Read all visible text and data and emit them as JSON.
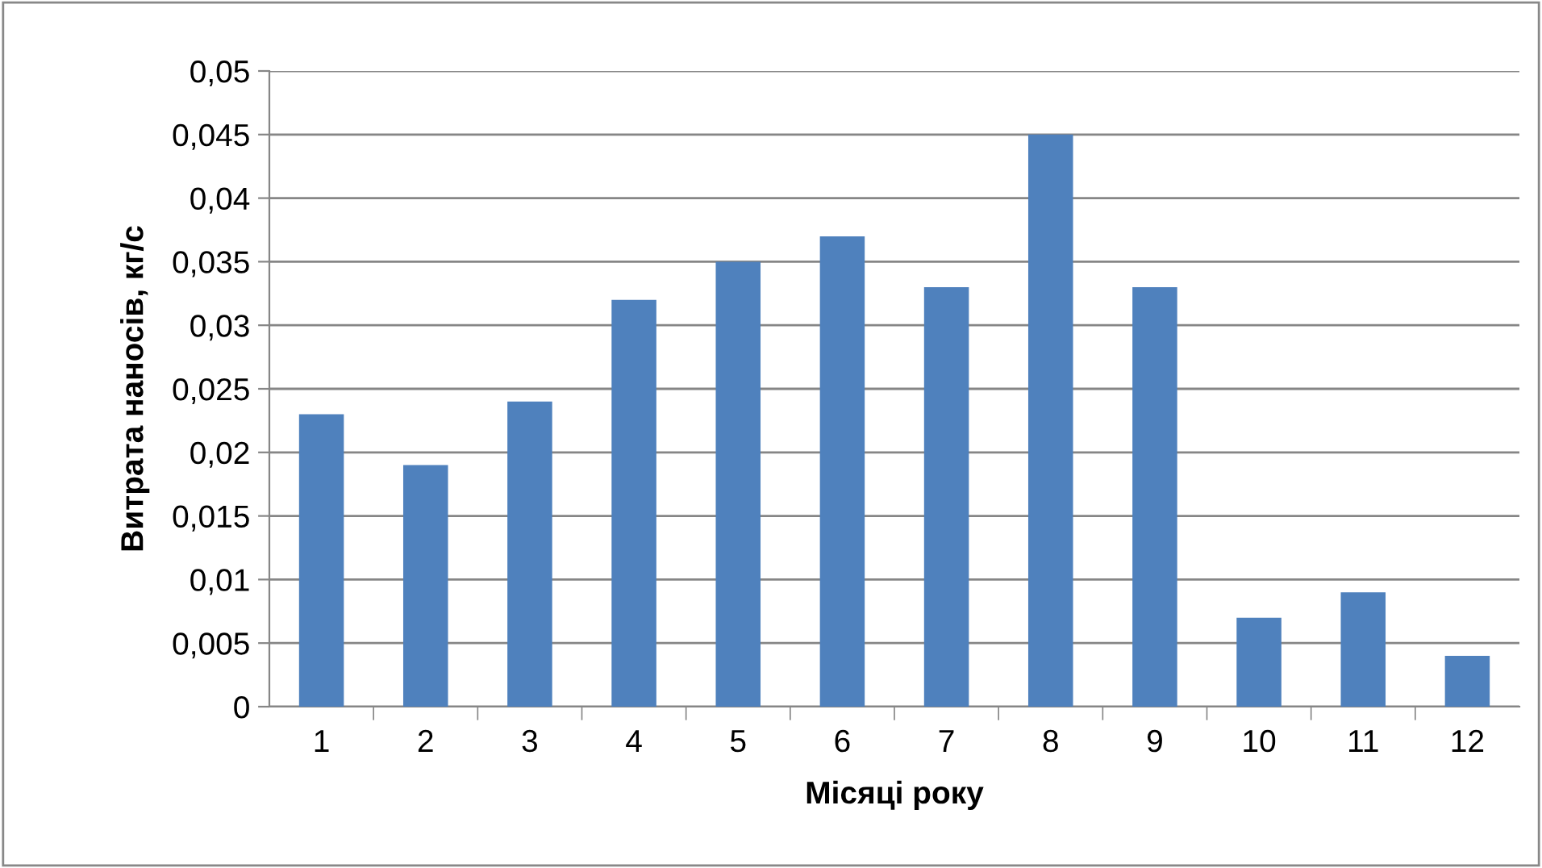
{
  "chart_data": {
    "type": "bar",
    "xlabel": "Місяці року",
    "ylabel": "Витрата наносів, кг/с",
    "categories": [
      "1",
      "2",
      "3",
      "4",
      "5",
      "6",
      "7",
      "8",
      "9",
      "10",
      "11",
      "12"
    ],
    "values": [
      0.023,
      0.019,
      0.024,
      0.032,
      0.035,
      0.037,
      0.033,
      0.045,
      0.033,
      0.007,
      0.009,
      0.004
    ],
    "color": "#4f81bd",
    "ylim": [
      0,
      0.05
    ],
    "yticks": [
      0,
      {
        "value": 0.005,
        "label": "0,005"
      },
      {
        "value": 0.01,
        "label": "0,01"
      },
      {
        "value": 0.015,
        "label": "0,015"
      },
      {
        "value": 0.02,
        "label": "0,02"
      },
      {
        "value": 0.025,
        "label": "0,025"
      },
      {
        "value": 0.03,
        "label": "0,03"
      },
      {
        "value": 0.035,
        "label": "0,035"
      },
      {
        "value": 0.04,
        "label": "0,04"
      },
      {
        "value": 0.045,
        "label": "0,045"
      },
      {
        "value": 0.05,
        "label": "0,05"
      }
    ],
    "grid": "y",
    "legend": false
  }
}
